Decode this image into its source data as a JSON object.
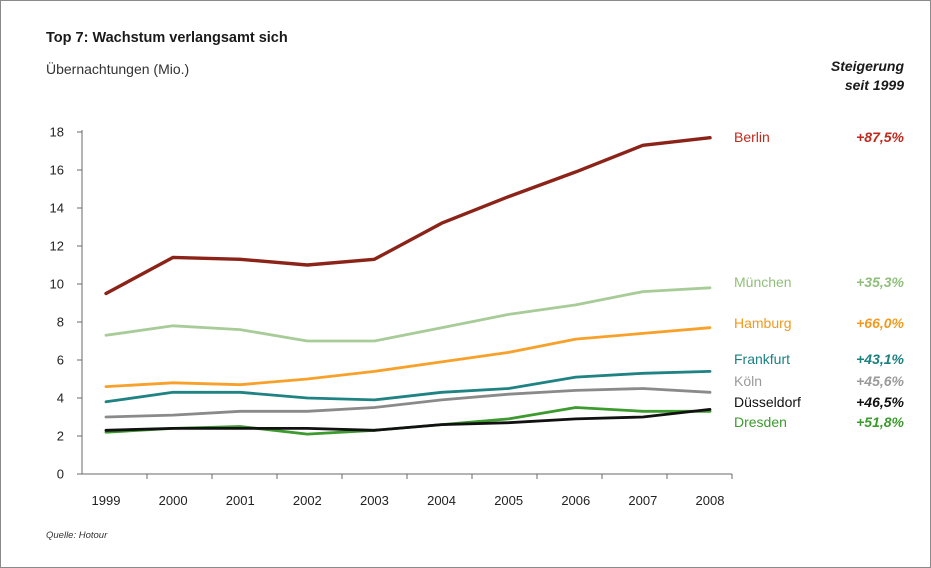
{
  "chart_data": {
    "type": "line",
    "title": "Top 7: Wachstum verlangsamt sich",
    "ylabel": "Übernachtungen (Mio.)",
    "legend_header": [
      "Steigerung",
      "seit 1999"
    ],
    "source": "Quelle: Hotour",
    "x": [
      "1999",
      "2000",
      "2001",
      "2002",
      "2003",
      "2004",
      "2005",
      "2006",
      "2007",
      "2008"
    ],
    "ylim": [
      0,
      18
    ],
    "yticks": [
      0,
      2,
      4,
      6,
      8,
      10,
      12,
      14,
      16,
      18
    ],
    "grid": false,
    "series": [
      {
        "name": "Berlin",
        "pct": "+87,5%",
        "color": "#8b2318",
        "label_color": "#c0281c",
        "width": 3.4,
        "values": [
          9.5,
          11.4,
          11.3,
          11.0,
          11.3,
          13.2,
          14.6,
          15.9,
          17.3,
          17.7
        ]
      },
      {
        "name": "München",
        "pct": "+35,3%",
        "color": "#a8cc98",
        "label_color": "#8fbf7a",
        "width": 2.8,
        "values": [
          7.3,
          7.8,
          7.6,
          7.0,
          7.0,
          7.7,
          8.4,
          8.9,
          9.6,
          9.8
        ]
      },
      {
        "name": "Hamburg",
        "pct": "+66,0%",
        "color": "#f7a12a",
        "label_color": "#f39a1c",
        "width": 2.8,
        "values": [
          4.6,
          4.8,
          4.7,
          5.0,
          5.4,
          5.9,
          6.4,
          7.1,
          7.4,
          7.7
        ]
      },
      {
        "name": "Frankfurt",
        "pct": "+43,1%",
        "color": "#1f8283",
        "label_color": "#1a8080",
        "width": 2.8,
        "values": [
          3.8,
          4.3,
          4.3,
          4.0,
          3.9,
          4.3,
          4.5,
          5.1,
          5.3,
          5.4
        ]
      },
      {
        "name": "Köln",
        "pct": "+45,6%",
        "color": "#8a8a8a",
        "label_color": "#9a9a9a",
        "width": 2.8,
        "values": [
          3.0,
          3.1,
          3.3,
          3.3,
          3.5,
          3.9,
          4.2,
          4.4,
          4.5,
          4.3
        ]
      },
      {
        "name": "Dresden",
        "pct": "+51,8%",
        "color": "#3c9a2e",
        "label_color": "#3c9a2e",
        "width": 2.8,
        "values": [
          2.2,
          2.4,
          2.5,
          2.1,
          2.3,
          2.6,
          2.9,
          3.5,
          3.3,
          3.3
        ]
      },
      {
        "name": "Düsseldorf",
        "pct": "+46,5%",
        "color": "#111111",
        "label_color": "#111111",
        "width": 2.8,
        "values": [
          2.3,
          2.4,
          2.4,
          2.4,
          2.3,
          2.6,
          2.7,
          2.9,
          3.0,
          3.4
        ]
      }
    ]
  }
}
